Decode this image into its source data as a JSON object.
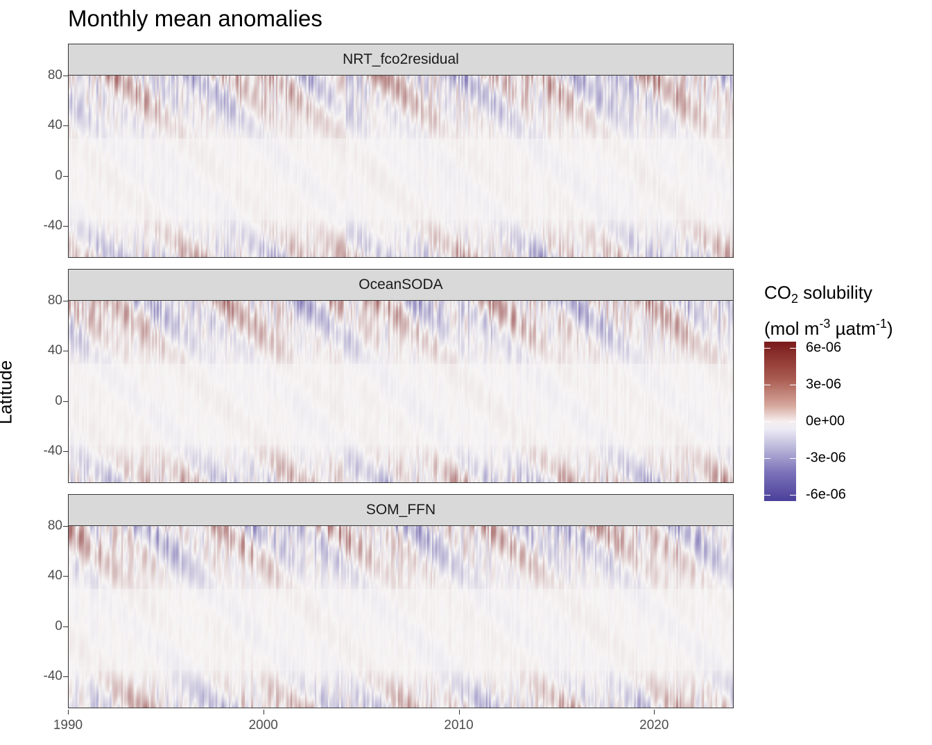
{
  "chart_data": {
    "type": "heatmap",
    "title": "Monthly mean anomalies",
    "xlabel": "",
    "ylabel": "Latitude",
    "xlim": [
      1990,
      2024
    ],
    "ylim": [
      -65,
      80
    ],
    "x_ticks": [
      1990,
      2000,
      2010,
      2020
    ],
    "x_tick_labels": [
      "1990",
      "2000",
      "2010",
      "2020"
    ],
    "y_ticks": [
      80,
      40,
      0,
      -40
    ],
    "y_tick_labels": [
      "80",
      "40",
      "0",
      "-40"
    ],
    "facets": [
      {
        "name": "NRT_fco2residual"
      },
      {
        "name": "OceanSODA"
      },
      {
        "name": "SOM_FFN"
      }
    ],
    "legend": {
      "title_main": "CO",
      "title_sub": "2",
      "title_rest": " solubility",
      "units_open": "(mol m",
      "units_sup1": "-3",
      "units_mid": " µatm",
      "units_sup2": "-1",
      "units_close": ")",
      "placement": "right",
      "ticks": [
        {
          "value": 6e-06,
          "label": "6e-06"
        },
        {
          "value": 3e-06,
          "label": "3e-06"
        },
        {
          "value": 0,
          "label": "0e+00"
        },
        {
          "value": -3e-06,
          "label": "-3e-06"
        },
        {
          "value": -6e-06,
          "label": "-6e-06"
        }
      ],
      "range": [
        -6.5e-06,
        6.5e-06
      ],
      "colors": {
        "high": "#7a1a1a",
        "mid": "#f7f5f5",
        "low": "#4a3f9a"
      }
    }
  }
}
